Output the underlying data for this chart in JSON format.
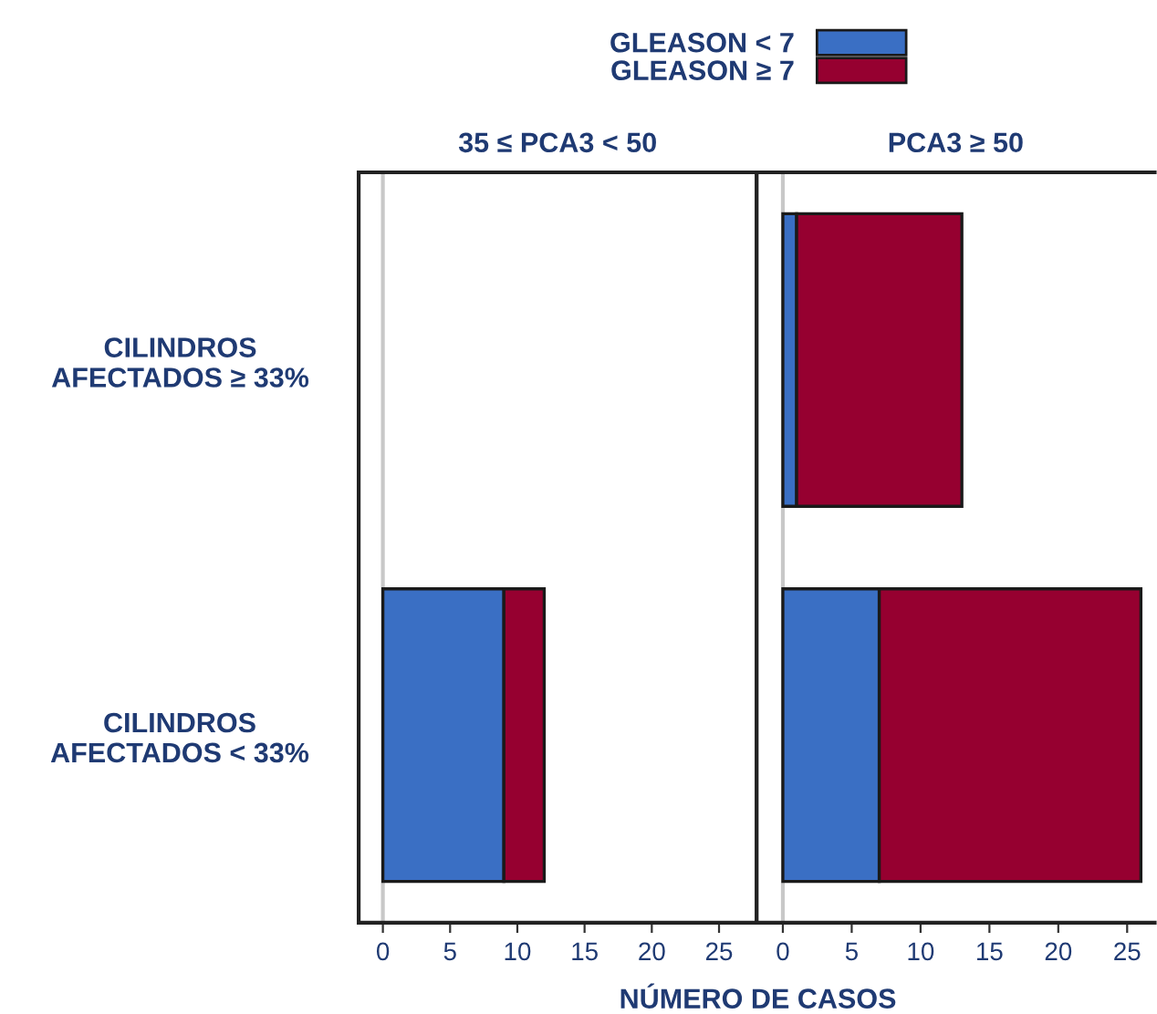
{
  "chart_data": [
    {
      "type": "bar",
      "orientation": "horizontal",
      "stacked": true,
      "title": "35 ≤ PCA3 < 50",
      "xlabel": "NÚMERO DE CASOS",
      "categories": [
        "CILINDROS\nAFECTADOS ≥ 33%",
        "CILINDROS\nAFECTADOS < 33%"
      ],
      "series": [
        {
          "name": "GLEASON < 7",
          "color": "#3a6fc4",
          "values": [
            null,
            9
          ]
        },
        {
          "name": "GLEASON ≥ 7",
          "color": "#960030",
          "values": [
            null,
            3
          ]
        }
      ],
      "xlim": [
        -1.8,
        27.8
      ],
      "xticks": [
        0,
        5,
        10,
        15,
        20,
        25
      ],
      "grid": false,
      "legend": "top",
      "ref_lines": [
        {
          "axis": "x",
          "value": 0,
          "color": "#c8c8c8"
        }
      ]
    },
    {
      "type": "bar",
      "orientation": "horizontal",
      "stacked": true,
      "title": "PCA3 ≥ 50",
      "categories": [
        null,
        null
      ],
      "series": [
        {
          "color": "#3a6fc4",
          "values": [
            1,
            7
          ]
        },
        {
          "color": "#960030",
          "values": [
            12,
            19
          ]
        }
      ],
      "xlim": [
        -1.9,
        27
      ],
      "xticks": [
        0,
        5,
        10,
        15,
        20,
        25
      ],
      "grid": false,
      "tick_labels": "x",
      "ref_lines": [
        {
          "axis": "x",
          "value": 0,
          "color": "#c8c8c8"
        }
      ]
    }
  ]
}
